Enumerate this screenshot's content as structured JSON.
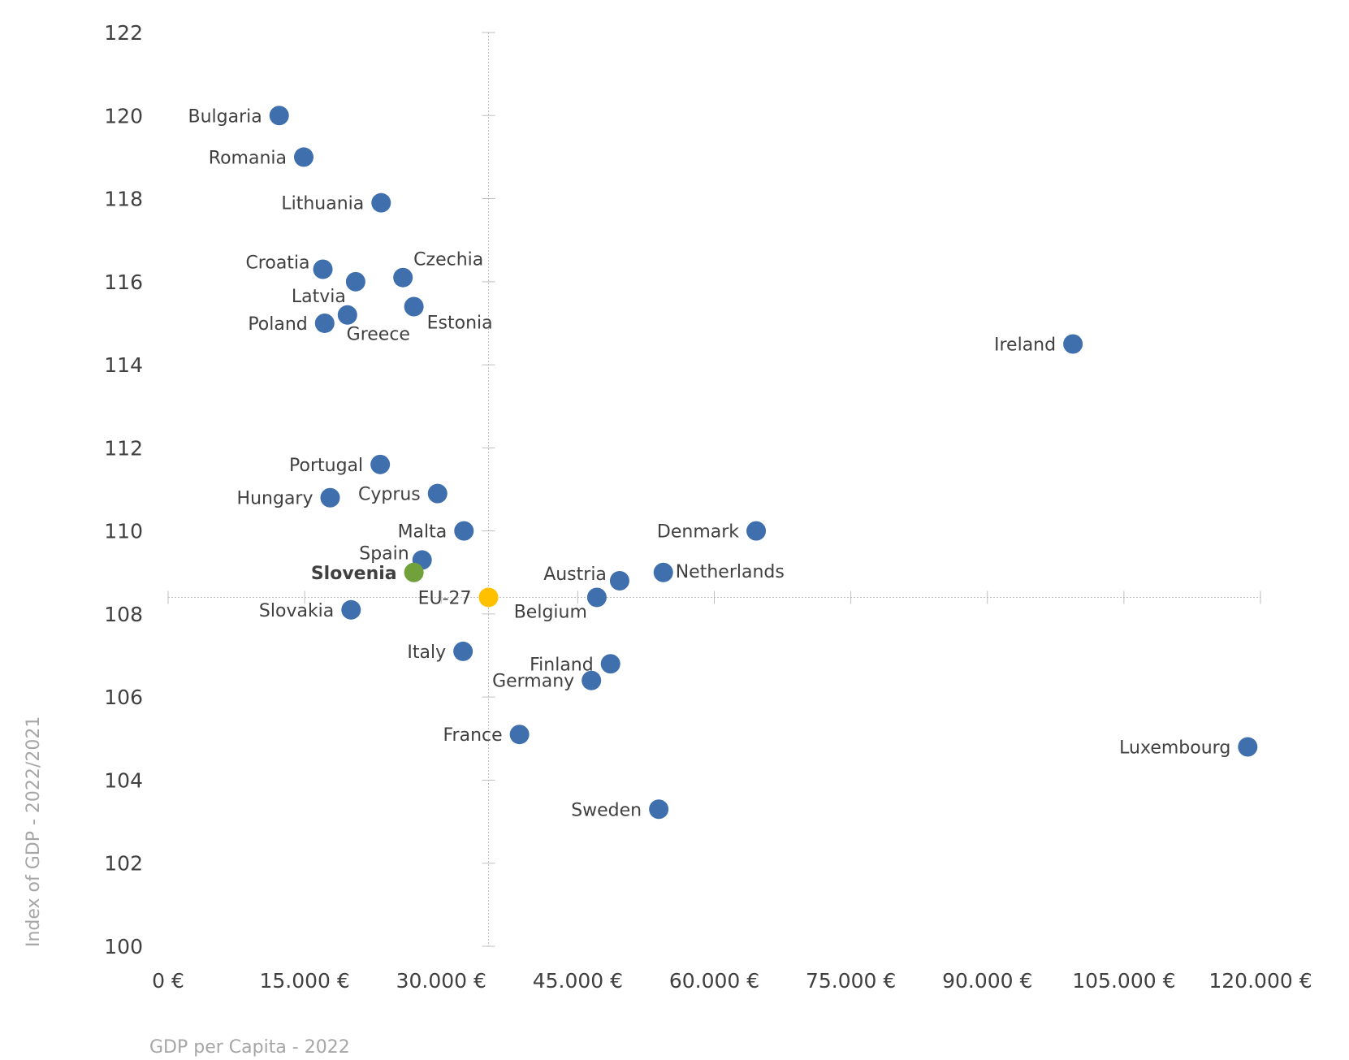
{
  "chart_data": {
    "type": "scatter",
    "xlabel": "GDP per Capita - 2022",
    "ylabel": "Index of GDP - 2022/2021",
    "xlim": [
      0,
      120000
    ],
    "ylim": [
      100,
      122
    ],
    "x_ticks": [
      "0 €",
      "15.000 €",
      "30.000 €",
      "45.000 €",
      "60.000 €",
      "75.000 €",
      "90.000 €",
      "105.000 €",
      "120.000 €"
    ],
    "y_ticks": [
      "100",
      "102",
      "104",
      "106",
      "108",
      "110",
      "112",
      "114",
      "116",
      "118",
      "120",
      "122"
    ],
    "reference_lines": {
      "x": 35200,
      "y": 108.4
    },
    "grid": false,
    "colors": {
      "default": "#3f6fad",
      "highlight": "#70a13a",
      "reference": "#ffc000",
      "axis_title": "#a6a6a6",
      "tick": "#404040"
    },
    "points": [
      {
        "label": "Bulgaria",
        "x": 12200,
        "y": 120.0,
        "label_pos": "left"
      },
      {
        "label": "Romania",
        "x": 14900,
        "y": 119.0,
        "label_pos": "left"
      },
      {
        "label": "Lithuania",
        "x": 23400,
        "y": 117.9,
        "label_pos": "left",
        "label_color": "#000000"
      },
      {
        "label": "Croatia",
        "x": 17000,
        "y": 116.3,
        "label_pos": "upleft"
      },
      {
        "label": "Latvia",
        "x": 20600,
        "y": 116.0,
        "label_pos": "downleft"
      },
      {
        "label": "Czechia",
        "x": 25800,
        "y": 116.1,
        "label_pos": "upright"
      },
      {
        "label": "Greece",
        "x": 19700,
        "y": 115.2,
        "label_pos": "down"
      },
      {
        "label": "Poland",
        "x": 17200,
        "y": 115.0,
        "label_pos": "left"
      },
      {
        "label": "Estonia",
        "x": 27000,
        "y": 115.4,
        "label_pos": "downright"
      },
      {
        "label": "Ireland",
        "x": 99400,
        "y": 114.5,
        "label_pos": "left"
      },
      {
        "label": "Portugal",
        "x": 23300,
        "y": 111.6,
        "label_pos": "left"
      },
      {
        "label": "Cyprus",
        "x": 29600,
        "y": 110.9,
        "label_pos": "left"
      },
      {
        "label": "Hungary",
        "x": 17800,
        "y": 110.8,
        "label_pos": "left"
      },
      {
        "label": "Malta",
        "x": 32500,
        "y": 110.0,
        "label_pos": "left"
      },
      {
        "label": "Denmark",
        "x": 64600,
        "y": 110.0,
        "label_pos": "left"
      },
      {
        "label": "Spain",
        "x": 27900,
        "y": 109.3,
        "label_pos": "upleft"
      },
      {
        "label": "Slovenia",
        "x": 27000,
        "y": 109.0,
        "label_pos": "left",
        "color": "#70a13a",
        "label_color": "#70a13a",
        "bold": true
      },
      {
        "label": "Netherlands",
        "x": 54400,
        "y": 109.0,
        "label_pos": "right"
      },
      {
        "label": "Austria",
        "x": 49600,
        "y": 108.8,
        "label_pos": "upleft"
      },
      {
        "label": "EU-27",
        "x": 35200,
        "y": 108.4,
        "label_pos": "left",
        "color": "#ffc000",
        "label_color": "#ffc000"
      },
      {
        "label": "Belgium",
        "x": 47100,
        "y": 108.4,
        "label_pos": "downleft",
        "label_color": "#000000"
      },
      {
        "label": "Slovakia",
        "x": 20100,
        "y": 108.1,
        "label_pos": "left"
      },
      {
        "label": "Italy",
        "x": 32400,
        "y": 107.1,
        "label_pos": "left"
      },
      {
        "label": "Finland",
        "x": 48600,
        "y": 106.8,
        "label_pos": "left"
      },
      {
        "label": "Germany",
        "x": 46500,
        "y": 106.4,
        "label_pos": "left"
      },
      {
        "label": "France",
        "x": 38600,
        "y": 105.1,
        "label_pos": "left"
      },
      {
        "label": "Luxembourg",
        "x": 118600,
        "y": 104.8,
        "label_pos": "left"
      },
      {
        "label": "Sweden",
        "x": 53900,
        "y": 103.3,
        "label_pos": "left"
      }
    ]
  }
}
